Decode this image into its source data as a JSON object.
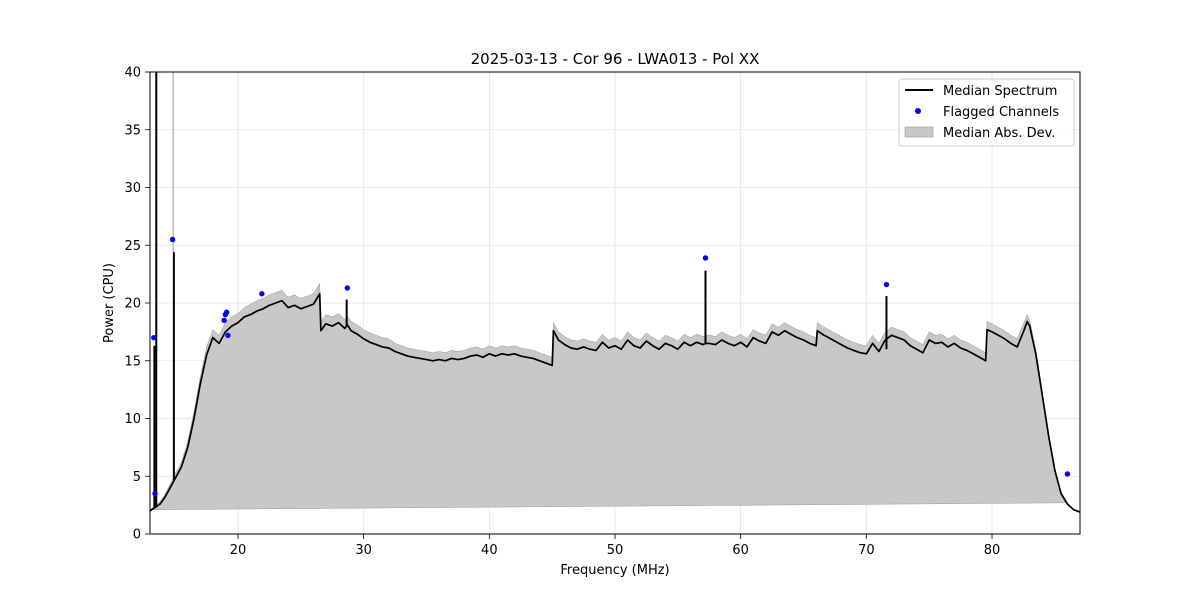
{
  "chart_data": {
    "type": "line",
    "title": "2025-03-13 - Cor 96 - LWA013 - Pol XX",
    "xlabel": "Frequency (MHz)",
    "ylabel": "Power (CPU)",
    "xlim": [
      13.0,
      87.0
    ],
    "ylim": [
      0,
      40
    ],
    "xticks": [
      20,
      30,
      40,
      50,
      60,
      70,
      80
    ],
    "yticks": [
      0,
      5,
      10,
      15,
      20,
      25,
      30,
      35,
      40
    ],
    "grid": true,
    "legend_position": "top-right",
    "legend": [
      "Median Spectrum",
      "Flagged Channels",
      "Median Abs. Dev."
    ],
    "colors": {
      "median": "#000000",
      "flagged": "#0000ff",
      "mad_fill": "#c8c8c8",
      "mad_edge": "#999999"
    },
    "series": [
      {
        "name": "Median Spectrum",
        "x": [
          13.0,
          13.4,
          13.8,
          14.2,
          14.6,
          15.0,
          15.5,
          16.0,
          16.5,
          17.0,
          17.5,
          18.0,
          18.5,
          19.0,
          19.5,
          20.0,
          20.5,
          21.0,
          21.5,
          22.0,
          22.5,
          23.0,
          23.5,
          24.0,
          24.5,
          25.0,
          25.5,
          26.0,
          26.5,
          26.6,
          27.0,
          27.5,
          28.0,
          28.5,
          28.7,
          29.0,
          29.5,
          30.0,
          30.5,
          31.0,
          31.5,
          32.0,
          32.5,
          33.0,
          33.5,
          34.0,
          34.5,
          35.0,
          35.5,
          36.0,
          36.5,
          37.0,
          37.5,
          38.0,
          38.5,
          39.0,
          39.5,
          40.0,
          40.5,
          41.0,
          41.5,
          42.0,
          42.5,
          43.0,
          43.5,
          44.0,
          44.5,
          45.0,
          45.1,
          45.5,
          46.0,
          46.5,
          47.0,
          47.5,
          48.0,
          48.5,
          49.0,
          49.5,
          50.0,
          50.5,
          51.0,
          51.5,
          52.0,
          52.5,
          53.0,
          53.5,
          54.0,
          54.5,
          55.0,
          55.5,
          56.0,
          56.5,
          57.0,
          57.2,
          57.5,
          58.0,
          58.5,
          59.0,
          59.5,
          60.0,
          60.5,
          61.0,
          61.5,
          62.0,
          62.5,
          63.0,
          63.5,
          64.0,
          64.5,
          65.0,
          65.5,
          66.0,
          66.1,
          66.5,
          67.0,
          67.5,
          68.0,
          68.5,
          69.0,
          69.5,
          70.0,
          70.5,
          71.0,
          71.5,
          72.0,
          72.5,
          73.0,
          73.5,
          74.0,
          74.5,
          75.0,
          75.5,
          76.0,
          76.5,
          77.0,
          77.5,
          78.0,
          78.5,
          79.0,
          79.5,
          79.6,
          80.0,
          80.5,
          81.0,
          81.5,
          82.0,
          82.5,
          82.8,
          83.0,
          83.5,
          84.0,
          84.5,
          85.0,
          85.5,
          86.0,
          86.5,
          87.0
        ],
        "values": [
          2.0,
          2.3,
          2.6,
          3.2,
          4.0,
          4.8,
          5.8,
          7.5,
          10.0,
          13.0,
          15.5,
          17.0,
          16.5,
          17.5,
          18.0,
          18.3,
          18.8,
          19.0,
          19.3,
          19.5,
          19.8,
          20.0,
          20.2,
          19.6,
          19.8,
          19.5,
          19.7,
          19.9,
          20.8,
          17.6,
          18.2,
          18.0,
          18.3,
          17.8,
          18.1,
          17.6,
          17.3,
          16.9,
          16.6,
          16.4,
          16.2,
          16.1,
          15.8,
          15.6,
          15.4,
          15.3,
          15.2,
          15.1,
          15.0,
          15.1,
          15.0,
          15.2,
          15.1,
          15.2,
          15.4,
          15.5,
          15.3,
          15.6,
          15.4,
          15.6,
          15.5,
          15.6,
          15.4,
          15.3,
          15.2,
          15.0,
          14.8,
          14.6,
          17.6,
          16.8,
          16.4,
          16.1,
          16.0,
          16.2,
          16.0,
          15.9,
          16.6,
          16.1,
          16.3,
          16.0,
          16.8,
          16.3,
          16.1,
          16.7,
          16.3,
          16.0,
          16.5,
          16.3,
          16.0,
          16.6,
          16.3,
          16.6,
          16.4,
          16.5,
          16.5,
          16.4,
          16.8,
          16.5,
          16.3,
          16.6,
          16.2,
          17.0,
          16.7,
          16.5,
          17.5,
          17.2,
          17.6,
          17.3,
          17.0,
          16.8,
          16.5,
          16.3,
          17.6,
          17.3,
          17.0,
          16.7,
          16.4,
          16.1,
          15.9,
          15.7,
          15.6,
          16.5,
          15.8,
          16.8,
          17.2,
          17.0,
          16.8,
          16.3,
          16.0,
          15.7,
          16.8,
          16.5,
          16.6,
          16.2,
          16.5,
          16.1,
          15.9,
          15.6,
          15.3,
          15.0,
          17.7,
          17.5,
          17.2,
          16.9,
          16.5,
          16.2,
          17.5,
          18.4,
          18.0,
          15.5,
          12.0,
          8.5,
          5.5,
          3.5,
          2.6,
          2.1,
          1.9
        ],
        "mad": [
          0.1,
          0.1,
          0.2,
          0.3,
          0.3,
          0.4,
          0.4,
          0.5,
          0.6,
          0.6,
          0.7,
          0.7,
          0.7,
          0.8,
          0.8,
          0.8,
          0.8,
          0.9,
          0.9,
          0.9,
          0.9,
          0.9,
          0.9,
          0.9,
          0.9,
          0.9,
          0.9,
          0.9,
          0.9,
          0.8,
          0.8,
          0.8,
          0.8,
          0.8,
          0.8,
          0.8,
          0.8,
          0.8,
          0.8,
          0.8,
          0.8,
          0.8,
          0.7,
          0.7,
          0.7,
          0.7,
          0.7,
          0.7,
          0.7,
          0.7,
          0.7,
          0.7,
          0.7,
          0.7,
          0.7,
          0.7,
          0.7,
          0.7,
          0.7,
          0.7,
          0.7,
          0.7,
          0.7,
          0.7,
          0.7,
          0.7,
          0.7,
          0.7,
          0.7,
          0.7,
          0.7,
          0.7,
          0.7,
          0.7,
          0.7,
          0.7,
          0.7,
          0.7,
          0.7,
          0.7,
          0.7,
          0.7,
          0.7,
          0.7,
          0.7,
          0.7,
          0.7,
          0.7,
          0.7,
          0.7,
          0.7,
          0.7,
          0.7,
          0.7,
          0.7,
          0.7,
          0.7,
          0.7,
          0.7,
          0.7,
          0.7,
          0.7,
          0.7,
          0.7,
          0.7,
          0.7,
          0.7,
          0.7,
          0.7,
          0.7,
          0.7,
          0.7,
          0.7,
          0.7,
          0.7,
          0.7,
          0.7,
          0.7,
          0.7,
          0.7,
          0.7,
          0.7,
          0.7,
          0.7,
          0.7,
          0.7,
          0.7,
          0.7,
          0.7,
          0.7,
          0.7,
          0.7,
          0.7,
          0.7,
          0.7,
          0.7,
          0.7,
          0.7,
          0.7,
          0.7,
          0.7,
          0.7,
          0.7,
          0.7,
          0.7,
          0.7,
          0.7,
          0.6,
          0.5,
          0.4,
          0.3,
          0.2,
          0.1,
          0.1,
          0.1
        ]
      },
      {
        "name": "Median Abs. Dev.",
        "type": "area"
      },
      {
        "name": "Flagged Channels",
        "type": "scatter",
        "x": [
          13.3,
          13.4,
          14.8,
          18.9,
          19.0,
          19.1,
          19.2,
          21.9,
          28.7,
          57.2,
          71.6,
          86.0
        ],
        "values": [
          17.0,
          3.5,
          25.5,
          18.5,
          19.0,
          19.2,
          17.2,
          20.8,
          21.3,
          23.9,
          21.6,
          5.2
        ]
      }
    ],
    "spikes": [
      {
        "x": 13.5,
        "base": 2.3,
        "peak": 40.0
      },
      {
        "x": 13.35,
        "base": 2.2,
        "peak": 16.3
      },
      {
        "x": 14.9,
        "base": 4.7,
        "peak": 24.4
      },
      {
        "x": 28.65,
        "base": 18.0,
        "peak": 20.3
      },
      {
        "x": 57.2,
        "base": 16.5,
        "peak": 22.8
      },
      {
        "x": 71.6,
        "base": 16.0,
        "peak": 20.6
      }
    ]
  }
}
